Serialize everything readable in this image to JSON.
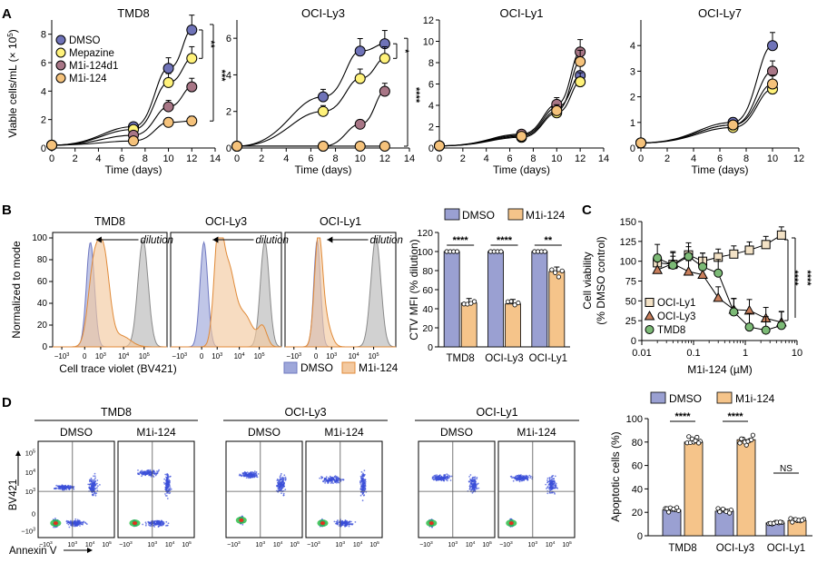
{
  "colors": {
    "dmso": "#6f73b8",
    "mepazine": "#fff27a",
    "m1i124d1": "#a87686",
    "m1i124": "#f5c27b",
    "bar_dmso": "#9aa0d2",
    "bar_m1i": "#f5c48a",
    "hist_dmso": "#9ea7da",
    "hist_m1i": "#f3c9a0",
    "hist_gray": "#b9b9b9",
    "ocily1": "#f3e2c6",
    "ocily3": "#c97f5c",
    "tmd8": "#7cba76"
  },
  "panel_labels": {
    "a": "A",
    "b": "B",
    "c": "C",
    "d": "D"
  },
  "chart_data": [
    {
      "id": "A",
      "type": "line",
      "ylabel_parts": {
        "main": "Viable cells/mL (× 10",
        "sup": "5",
        "close": ")"
      },
      "xlabel": "Time (days)",
      "legend": [
        "DMSO",
        "Mepazine",
        "M1i-124d1",
        "M1i-124"
      ],
      "panels": [
        {
          "title": "TMD8",
          "xlim": [
            0,
            14
          ],
          "ylim": [
            0,
            9
          ],
          "xticks": [
            "0",
            "2",
            "4",
            "6",
            "8",
            "10",
            "12",
            "14"
          ],
          "yticks": [
            "0",
            "2",
            "4",
            "6",
            "8"
          ],
          "x": [
            0,
            7,
            10,
            12
          ],
          "series": [
            {
              "name": "DMSO",
              "values": [
                0.2,
                1.5,
                5.6,
                8.3
              ]
            },
            {
              "name": "Mepazine",
              "values": [
                0.2,
                1.3,
                4.6,
                6.3
              ]
            },
            {
              "name": "M1i-124d1",
              "values": [
                0.2,
                0.9,
                2.9,
                4.3
              ]
            },
            {
              "name": "M1i-124",
              "values": [
                0.2,
                0.5,
                1.8,
                1.9
              ]
            }
          ],
          "significance": [
            "**",
            "***"
          ]
        },
        {
          "title": "OCI-Ly3",
          "xlim": [
            0,
            14
          ],
          "ylim": [
            0,
            7
          ],
          "xticks": [
            "0",
            "2",
            "4",
            "6",
            "8",
            "10",
            "12",
            "14"
          ],
          "yticks": [
            "0",
            "2",
            "4",
            "6"
          ],
          "x": [
            0,
            7,
            10,
            12
          ],
          "series": [
            {
              "name": "DMSO",
              "values": [
                0.1,
                2.8,
                5.3,
                5.7
              ]
            },
            {
              "name": "Mepazine",
              "values": [
                0.1,
                2.0,
                3.8,
                4.9
              ]
            },
            {
              "name": "M1i-124d1",
              "values": [
                0.1,
                0.1,
                1.3,
                3.1
              ]
            },
            {
              "name": "M1i-124",
              "values": [
                0.1,
                0.1,
                0.1,
                0.1
              ]
            }
          ],
          "significance": [
            "*",
            "****"
          ]
        },
        {
          "title": "OCI-Ly1",
          "xlim": [
            0,
            14
          ],
          "ylim": [
            0,
            12
          ],
          "xticks": [
            "0",
            "2",
            "4",
            "6",
            "8",
            "10",
            "12",
            "14"
          ],
          "yticks": [
            "0",
            "2",
            "4",
            "6",
            "8",
            "10",
            "12"
          ],
          "x": [
            0,
            7,
            10,
            12
          ],
          "series": [
            {
              "name": "DMSO",
              "values": [
                0.2,
                1.2,
                3.8,
                6.8
              ]
            },
            {
              "name": "Mepazine",
              "values": [
                0.2,
                1.0,
                3.3,
                6.2
              ]
            },
            {
              "name": "M1i-124d1",
              "values": [
                0.2,
                1.3,
                4.1,
                9.0
              ]
            },
            {
              "name": "M1i-124",
              "values": [
                0.2,
                1.1,
                3.5,
                8.1
              ]
            }
          ],
          "significance": []
        },
        {
          "title": "OCI-Ly7",
          "xlim": [
            0,
            12
          ],
          "ylim": [
            0,
            5
          ],
          "xticks": [
            "0",
            "2",
            "4",
            "6",
            "8",
            "10",
            "12"
          ],
          "yticks": [
            "0",
            "1",
            "2",
            "3",
            "4"
          ],
          "x": [
            0,
            7,
            10
          ],
          "series": [
            {
              "name": "DMSO",
              "values": [
                0.2,
                1.0,
                4.0
              ]
            },
            {
              "name": "Mepazine",
              "values": [
                0.2,
                0.8,
                2.3
              ]
            },
            {
              "name": "M1i-124d1",
              "values": [
                0.2,
                0.9,
                3.0
              ]
            },
            {
              "name": "M1i-124",
              "values": [
                0.2,
                0.9,
                2.5
              ]
            }
          ],
          "significance": []
        }
      ]
    },
    {
      "id": "B-histograms",
      "type": "area",
      "ylabel": "Normalized to mode",
      "xlabel": "Cell trace violet (BV421)",
      "yticks": [
        "0",
        "20",
        "40",
        "60",
        "80",
        "100"
      ],
      "xticks_parts": [
        {
          "base": "−10",
          "exp": "3"
        },
        {
          "base": "0",
          "exp": ""
        },
        {
          "base": "10",
          "exp": "3"
        },
        {
          "base": "10",
          "exp": "4"
        },
        {
          "base": "10",
          "exp": "5"
        }
      ],
      "annotation": "dilution",
      "panels": [
        "TMD8",
        "OCI-Ly3",
        "OCI-Ly1"
      ],
      "legend": [
        "DMSO",
        "M1i-124"
      ]
    },
    {
      "id": "B-bars",
      "type": "bar",
      "ylabel": "CTV MFI (% dilution)",
      "ylim": [
        0,
        120
      ],
      "yticks": [
        "0",
        "20",
        "40",
        "60",
        "80",
        "100",
        "120"
      ],
      "categories": [
        "TMD8",
        "OCI-Ly3",
        "OCI-Ly1"
      ],
      "series": [
        {
          "name": "DMSO",
          "values": [
            100,
            100,
            100
          ]
        },
        {
          "name": "M1i-124",
          "values": [
            46,
            45,
            79
          ]
        }
      ],
      "significance": [
        "****",
        "****",
        "**"
      ]
    },
    {
      "id": "C",
      "type": "line",
      "ylabel_lines": [
        "Cell viability",
        "(% DMSO control)"
      ],
      "xlabel": "M1i-124 (µM)",
      "xscale": "log",
      "xlim": [
        0.01,
        10
      ],
      "ylim": [
        0,
        150
      ],
      "xticks": [
        "0.01",
        "0.1",
        "1",
        "10"
      ],
      "yticks": [
        "0",
        "25",
        "50",
        "75",
        "100",
        "125",
        "150"
      ],
      "x": [
        0.02,
        0.04,
        0.08,
        0.15,
        0.3,
        0.6,
        1.2,
        2.5,
        5
      ],
      "series": [
        {
          "name": "OCI-Ly1",
          "values": [
            98,
            96,
            108,
            100,
            105,
            109,
            114,
            121,
            133
          ]
        },
        {
          "name": "OCI-Ly3",
          "values": [
            89,
            97,
            87,
            83,
            54,
            39,
            38,
            28,
            23
          ]
        },
        {
          "name": "TMD8",
          "values": [
            104,
            95,
            106,
            93,
            85,
            36,
            17,
            13,
            19
          ]
        }
      ],
      "significance": [
        "****",
        "****"
      ]
    },
    {
      "id": "D-flow",
      "type": "scatter",
      "groups": [
        "TMD8",
        "OCI-Ly3",
        "OCI-Ly1"
      ],
      "conditions": [
        "DMSO",
        "M1i-124",
        "DMSO",
        "M1i-124",
        "DMSO",
        "M1i-124"
      ],
      "ylabel": "BV421",
      "xlabel": "Annexin V",
      "yticks_parts": [
        {
          "base": "10",
          "exp": "5"
        },
        {
          "base": "10",
          "exp": "4"
        },
        {
          "base": "10",
          "exp": "3"
        },
        {
          "base": "0",
          "exp": ""
        },
        {
          "base": "−10",
          "exp": "3"
        }
      ],
      "xticks_parts": [
        {
          "base": "−10",
          "exp": "3"
        },
        {
          "base": "10",
          "exp": "3"
        },
        {
          "base": "10",
          "exp": "4"
        },
        {
          "base": "10",
          "exp": "5"
        }
      ]
    },
    {
      "id": "D-bars",
      "type": "bar",
      "ylabel": "Apoptotic cells (%)",
      "ylim": [
        0,
        100
      ],
      "yticks": [
        "0",
        "20",
        "40",
        "60",
        "80",
        "100"
      ],
      "categories": [
        "TMD8",
        "OCI-Ly3",
        "OCI-Ly1"
      ],
      "series": [
        {
          "name": "DMSO",
          "values": [
            22,
            21,
            11
          ]
        },
        {
          "name": "M1i-124",
          "values": [
            80,
            82,
            13
          ]
        }
      ],
      "significance": [
        "****",
        "****",
        "NS"
      ]
    }
  ]
}
